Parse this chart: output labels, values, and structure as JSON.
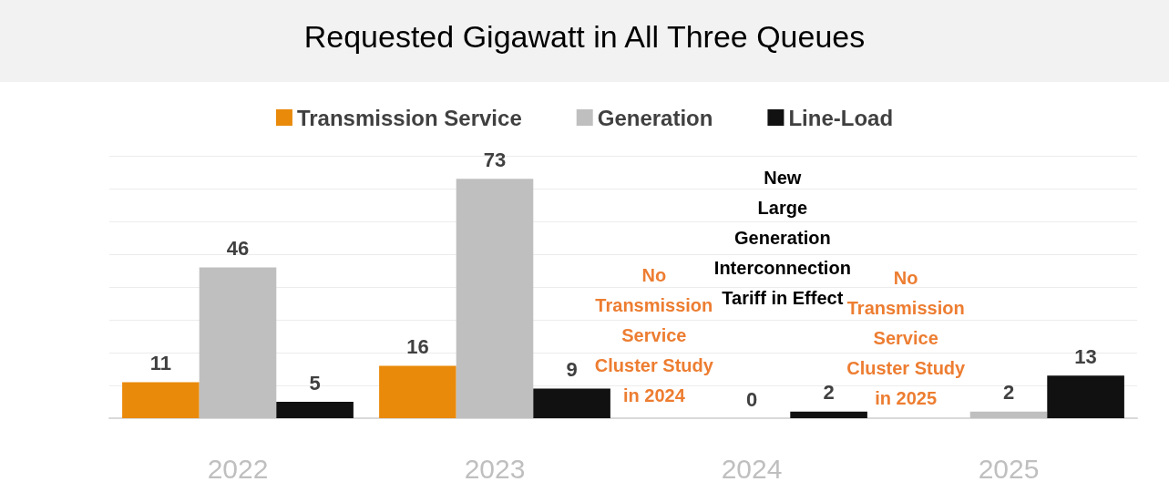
{
  "chart_data": {
    "type": "bar",
    "title": "Requested Gigawatt in All Three Queues",
    "categories": [
      "2022",
      "2023",
      "2024",
      "2025"
    ],
    "series": [
      {
        "name": "Transmission Service",
        "color": "#e98a0b",
        "values": [
          11,
          16,
          null,
          null
        ]
      },
      {
        "name": "Generation",
        "color": "#bfbfbf",
        "values": [
          46,
          73,
          0,
          2
        ]
      },
      {
        "name": "Line-Load",
        "color": "#111111",
        "values": [
          5,
          9,
          2,
          13
        ]
      }
    ],
    "ylim": [
      0,
      80
    ],
    "yticks": [
      {
        "value": 0,
        "label": null
      },
      {
        "value": 10,
        "label": null
      },
      {
        "value": 20,
        "label": null
      },
      {
        "value": 30,
        "label": null
      },
      {
        "value": 40,
        "label": null
      },
      {
        "value": 50,
        "label": null
      },
      {
        "value": 60,
        "label": null
      },
      {
        "value": 70,
        "label": null
      },
      {
        "value": 80,
        "label": null
      }
    ],
    "tick_labels": "x",
    "grid": "y",
    "legend": "top",
    "data_labels": true,
    "annotations": [
      "No\nTransmission\nService\nCluster Study\nin 2024",
      "New\nLarge\nGeneration\nInterconnection\nTariff in Effect",
      "No\nTransmission\nService\nCluster Study\nin 2025"
    ]
  }
}
